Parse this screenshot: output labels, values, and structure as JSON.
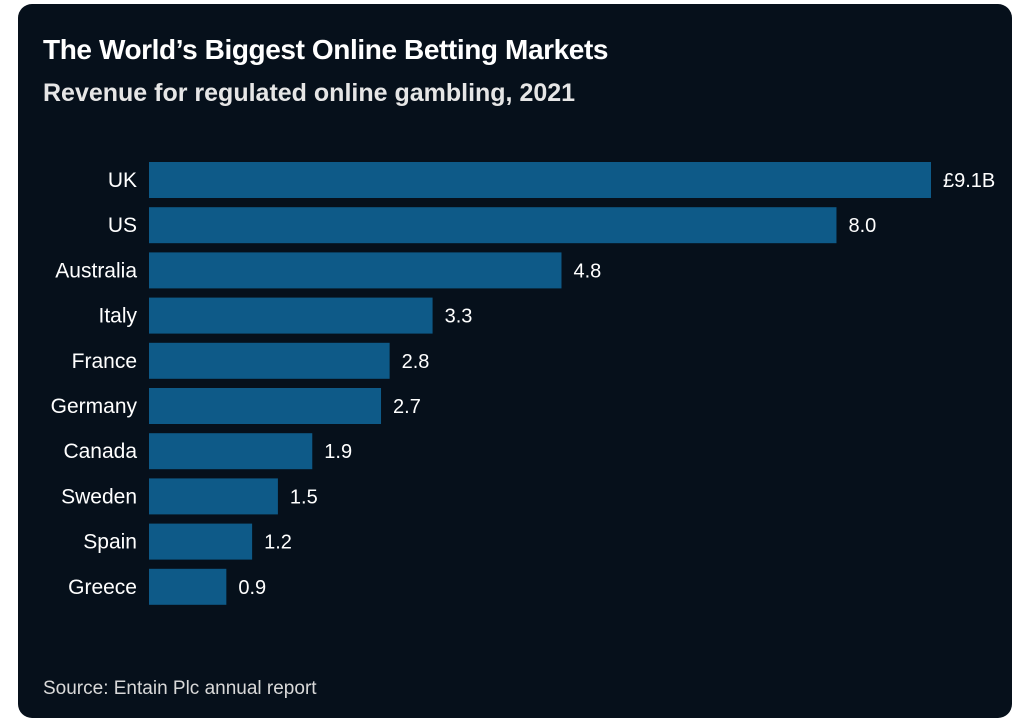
{
  "header": {
    "title": "The World’s Biggest Online Betting Markets",
    "subtitle": "Revenue for regulated online gambling, 2021"
  },
  "footer": {
    "source": "Source: Entain Plc annual report"
  },
  "colors": {
    "background": "#06101b",
    "bar": "#0e5a88",
    "text": "#ffffff"
  },
  "chart_data": {
    "type": "bar",
    "orientation": "horizontal",
    "title": "The World’s Biggest Online Betting Markets",
    "subtitle": "Revenue for regulated online gambling, 2021",
    "categories": [
      "UK",
      "US",
      "Australia",
      "Italy",
      "France",
      "Germany",
      "Canada",
      "Sweden",
      "Spain",
      "Greece"
    ],
    "values": [
      9.1,
      8.0,
      4.8,
      3.3,
      2.8,
      2.7,
      1.9,
      1.5,
      1.2,
      0.9
    ],
    "value_labels": [
      "£9.1B",
      "8.0",
      "4.8",
      "3.3",
      "2.8",
      "2.7",
      "1.9",
      "1.5",
      "1.2",
      "0.9"
    ],
    "xlim": [
      0,
      9.1
    ],
    "grid": false,
    "legend": "none"
  }
}
